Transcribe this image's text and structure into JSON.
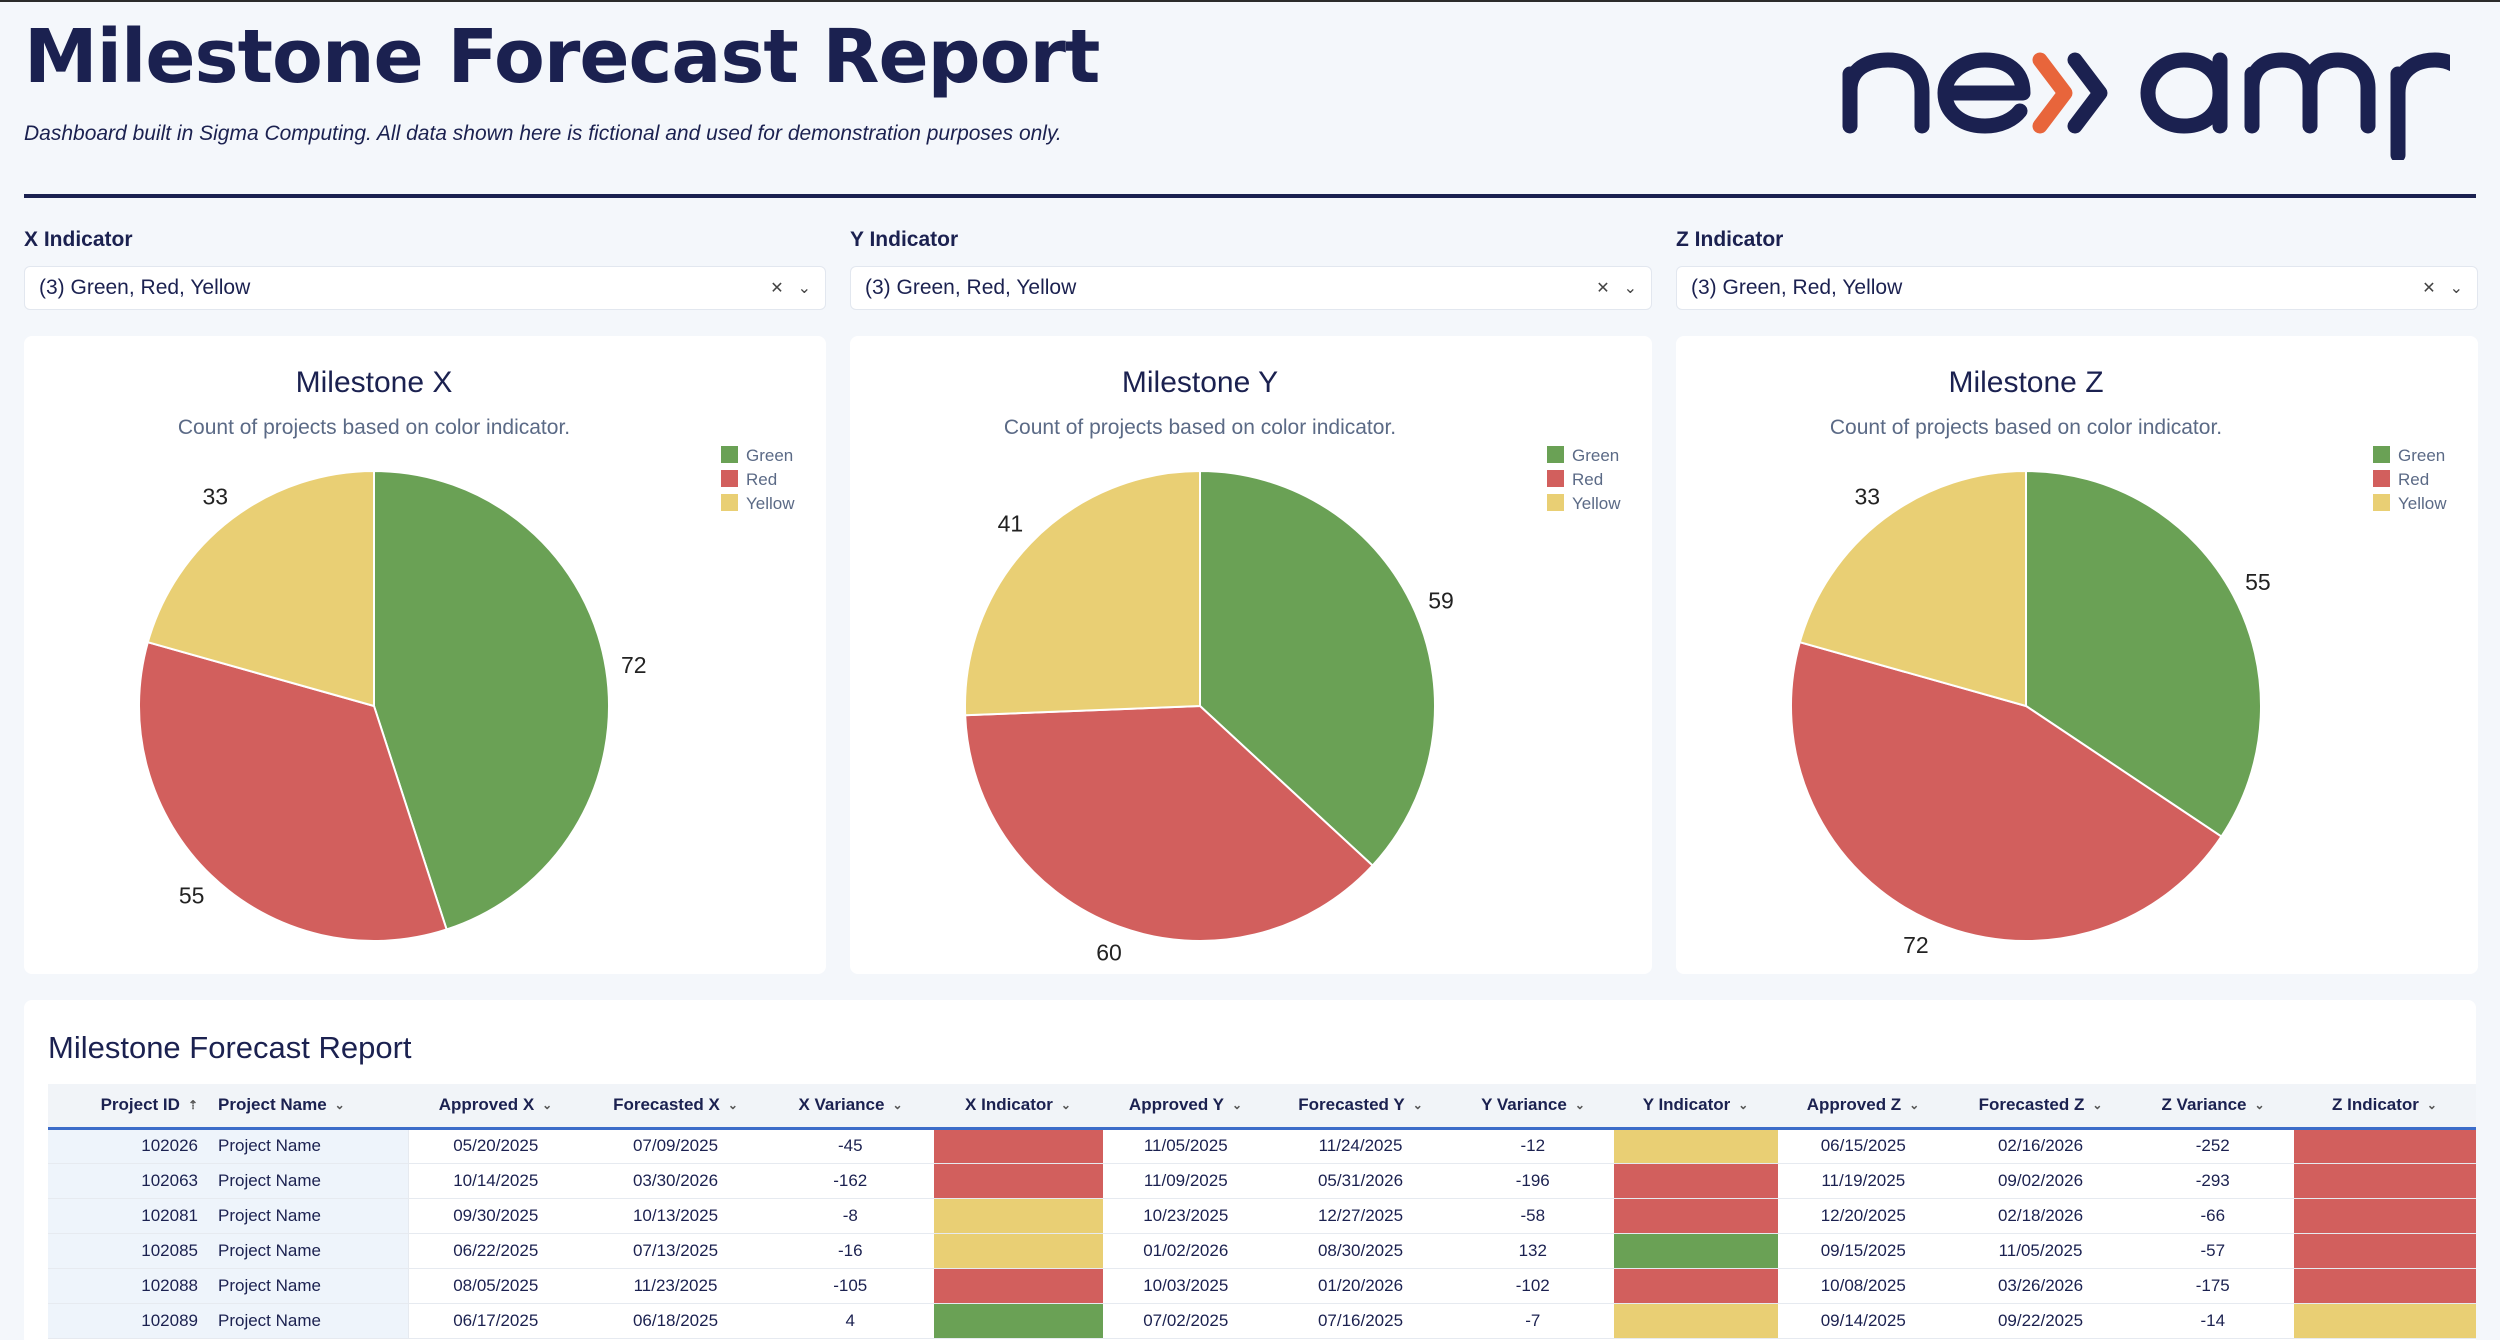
{
  "header": {
    "title": "Milestone Forecast Report",
    "subtitle": "Dashboard built in Sigma Computing. All data shown here is fictional and used for demonstration purposes only.",
    "logo_text": "nexamp"
  },
  "filters": [
    {
      "label": "X Indicator",
      "value": "(3) Green, Red, Yellow"
    },
    {
      "label": "Y Indicator",
      "value": "(3) Green, Red, Yellow"
    },
    {
      "label": "Z Indicator",
      "value": "(3) Green, Red, Yellow"
    }
  ],
  "icons": {
    "clear": "close-icon",
    "dropdown": "chevron-down-icon",
    "sort": "sort-ascending-icon"
  },
  "colors": {
    "Green": "#6aa155",
    "Red": "#d25f5d",
    "Yellow": "#e9cf74",
    "title": "#1b2150",
    "accent": "#3c6cc9"
  },
  "chart_data": [
    {
      "type": "pie",
      "title": "Milestone X",
      "subtitle": "Count of projects based on color indicator.",
      "legend": [
        "Green",
        "Red",
        "Yellow"
      ],
      "legend_position": "top-right",
      "slices": [
        {
          "label": "Green",
          "value": 72
        },
        {
          "label": "Red",
          "value": 55
        },
        {
          "label": "Yellow",
          "value": 33
        }
      ]
    },
    {
      "type": "pie",
      "title": "Milestone Y",
      "subtitle": "Count of projects based on color indicator.",
      "legend": [
        "Green",
        "Red",
        "Yellow"
      ],
      "legend_position": "top-right",
      "slices": [
        {
          "label": "Green",
          "value": 59
        },
        {
          "label": "Red",
          "value": 60
        },
        {
          "label": "Yellow",
          "value": 41
        }
      ]
    },
    {
      "type": "pie",
      "title": "Milestone Z",
      "subtitle": "Count of projects based on color indicator.",
      "legend": [
        "Green",
        "Red",
        "Yellow"
      ],
      "legend_position": "top-right",
      "slices": [
        {
          "label": "Green",
          "value": 55
        },
        {
          "label": "Red",
          "value": 72
        },
        {
          "label": "Yellow",
          "value": 33
        }
      ]
    }
  ],
  "table": {
    "title": "Milestone Forecast Report",
    "columns": [
      "Project ID",
      "Project Name",
      "Approved X",
      "Forecasted X",
      "X Variance",
      "X Indicator",
      "Approved Y",
      "Forecasted Y",
      "Y Variance",
      "Y Indicator",
      "Approved Z",
      "Forecasted Z",
      "Z Variance",
      "Z Indicator"
    ],
    "rows": [
      [
        "102026",
        "Project Name",
        "05/20/2025",
        "07/09/2025",
        "-45",
        "Red",
        "11/05/2025",
        "11/24/2025",
        "-12",
        "Yellow",
        "06/15/2025",
        "02/16/2026",
        "-252",
        "Red"
      ],
      [
        "102063",
        "Project Name",
        "10/14/2025",
        "03/30/2026",
        "-162",
        "Red",
        "11/09/2025",
        "05/31/2026",
        "-196",
        "Red",
        "11/19/2025",
        "09/02/2026",
        "-293",
        "Red"
      ],
      [
        "102081",
        "Project Name",
        "09/30/2025",
        "10/13/2025",
        "-8",
        "Yellow",
        "10/23/2025",
        "12/27/2025",
        "-58",
        "Red",
        "12/20/2025",
        "02/18/2026",
        "-66",
        "Red"
      ],
      [
        "102085",
        "Project Name",
        "06/22/2025",
        "07/13/2025",
        "-16",
        "Yellow",
        "01/02/2026",
        "08/30/2025",
        "132",
        "Green",
        "09/15/2025",
        "11/05/2025",
        "-57",
        "Red"
      ],
      [
        "102088",
        "Project Name",
        "08/05/2025",
        "11/23/2025",
        "-105",
        "Red",
        "10/03/2025",
        "01/20/2026",
        "-102",
        "Red",
        "10/08/2025",
        "03/26/2026",
        "-175",
        "Red"
      ],
      [
        "102089",
        "Project Name",
        "06/17/2025",
        "06/18/2025",
        "4",
        "Green",
        "07/02/2025",
        "07/16/2025",
        "-7",
        "Yellow",
        "09/14/2025",
        "09/22/2025",
        "-14",
        "Yellow"
      ]
    ]
  }
}
